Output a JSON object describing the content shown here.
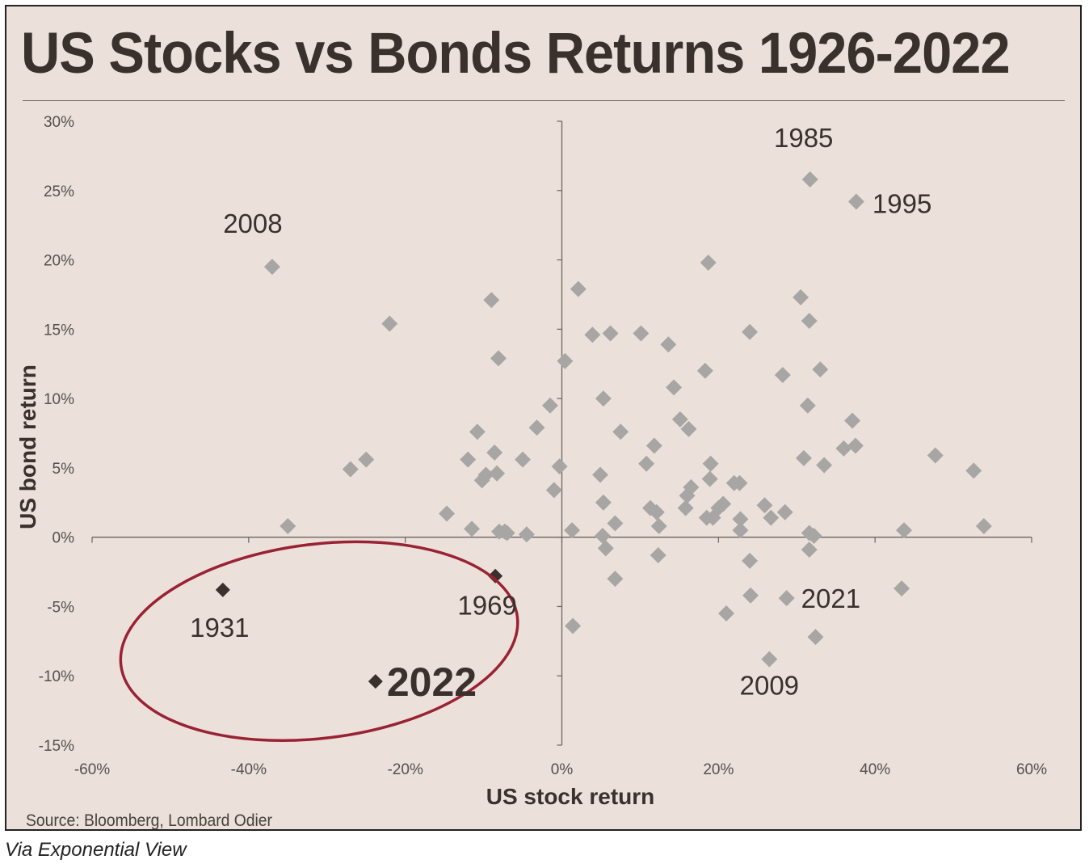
{
  "title": "US Stocks vs Bonds Returns 1926-2022",
  "source": "Source: Bloomberg, Lombard Odier",
  "caption": "Via Exponential View",
  "colors": {
    "background": "#ebe1da",
    "point": "#a8a6a5",
    "highlight": "#3a302c",
    "ellipse": "#9a2234"
  },
  "chart_data": {
    "type": "scatter",
    "xlabel": "US stock return",
    "ylabel": "US bond return",
    "xlim": [
      -60,
      60
    ],
    "ylim": [
      -15,
      30
    ],
    "x_ticks": [
      "-60%",
      "-40%",
      "-20%",
      "0%",
      "20%",
      "40%",
      "60%"
    ],
    "y_ticks": [
      "30%",
      "25%",
      "20%",
      "15%",
      "10%",
      "5%",
      "0%",
      "-5%",
      "-10%",
      "-15%"
    ],
    "grid": false,
    "series": [
      {
        "points": [
          [
            -37.0,
            19.5
          ],
          [
            -35.0,
            0.8
          ],
          [
            -27.0,
            4.9
          ],
          [
            -25.0,
            5.6
          ],
          [
            -22.0,
            15.4
          ],
          [
            -14.7,
            1.7
          ],
          [
            -12.0,
            5.6
          ],
          [
            -11.5,
            0.6
          ],
          [
            -10.8,
            7.6
          ],
          [
            -10.2,
            4.1
          ],
          [
            -9.7,
            4.5
          ],
          [
            -9.0,
            17.1
          ],
          [
            -8.6,
            6.1
          ],
          [
            -8.3,
            4.6
          ],
          [
            -8.1,
            12.9
          ],
          [
            -8.0,
            0.4
          ],
          [
            -7.3,
            0.4
          ],
          [
            -7.0,
            0.3
          ],
          [
            -5.0,
            5.6
          ],
          [
            -4.5,
            0.2
          ],
          [
            -3.2,
            7.9
          ],
          [
            -1.5,
            9.5
          ],
          [
            -1.0,
            3.4
          ],
          [
            -0.3,
            5.1
          ],
          [
            0.4,
            12.7
          ],
          [
            1.3,
            0.5
          ],
          [
            1.4,
            -6.4
          ],
          [
            2.1,
            17.9
          ],
          [
            3.9,
            14.6
          ],
          [
            4.9,
            4.5
          ],
          [
            5.3,
            10.0
          ],
          [
            5.3,
            2.5
          ],
          [
            5.2,
            0.1
          ],
          [
            5.6,
            -0.8
          ],
          [
            6.2,
            14.7
          ],
          [
            6.8,
            1.0
          ],
          [
            6.8,
            -3.0
          ],
          [
            7.5,
            7.6
          ],
          [
            10.1,
            14.7
          ],
          [
            10.8,
            5.3
          ],
          [
            11.3,
            2.1
          ],
          [
            11.8,
            6.6
          ],
          [
            12.1,
            1.8
          ],
          [
            12.3,
            -1.3
          ],
          [
            12.4,
            0.8
          ],
          [
            13.6,
            13.9
          ],
          [
            14.3,
            10.8
          ],
          [
            15.1,
            8.5
          ],
          [
            15.8,
            2.1
          ],
          [
            16.0,
            3.0
          ],
          [
            16.2,
            7.8
          ],
          [
            16.5,
            3.6
          ],
          [
            18.3,
            12.0
          ],
          [
            18.5,
            1.4
          ],
          [
            18.7,
            19.8
          ],
          [
            18.9,
            4.2
          ],
          [
            19.0,
            5.3
          ],
          [
            19.3,
            1.4
          ],
          [
            20.0,
            2.1
          ],
          [
            20.6,
            2.4
          ],
          [
            21.0,
            -5.5
          ],
          [
            22.0,
            3.9
          ],
          [
            22.7,
            3.9
          ],
          [
            22.8,
            1.3
          ],
          [
            22.8,
            0.5
          ],
          [
            24.0,
            14.8
          ],
          [
            24.0,
            -1.7
          ],
          [
            24.1,
            -4.2
          ],
          [
            25.9,
            2.3
          ],
          [
            26.5,
            -8.8
          ],
          [
            26.7,
            1.4
          ],
          [
            28.2,
            11.7
          ],
          [
            28.5,
            1.8
          ],
          [
            28.7,
            -4.4
          ],
          [
            30.5,
            17.3
          ],
          [
            30.9,
            5.7
          ],
          [
            31.4,
            9.5
          ],
          [
            31.6,
            15.6
          ],
          [
            31.6,
            0.3
          ],
          [
            31.6,
            -0.9
          ],
          [
            32.2,
            0.1
          ],
          [
            32.4,
            -7.2
          ],
          [
            33.0,
            12.1
          ],
          [
            33.5,
            5.2
          ],
          [
            36.0,
            6.4
          ],
          [
            37.1,
            8.4
          ],
          [
            37.5,
            6.6
          ],
          [
            43.4,
            -3.7
          ],
          [
            43.7,
            0.5
          ],
          [
            47.7,
            5.9
          ],
          [
            52.6,
            4.8
          ],
          [
            53.9,
            0.8
          ]
        ]
      },
      {
        "points": [
          [
            31.7,
            25.8
          ],
          [
            37.6,
            24.2
          ]
        ]
      }
    ],
    "highlights": [
      [
        -43.3,
        -3.8
      ],
      [
        -8.5,
        -2.8
      ],
      [
        -23.8,
        -10.4
      ]
    ],
    "annotations": [
      {
        "text": "1985",
        "x": 31.7,
        "y": 25.8
      },
      {
        "text": "1995",
        "x": 37.6,
        "y": 24.2
      },
      {
        "text": "2008",
        "x": -37.0,
        "y": 19.5
      },
      {
        "text": "2021",
        "x": 28.7,
        "y": -4.4
      },
      {
        "text": "2009",
        "x": 26.5,
        "y": -8.8
      },
      {
        "text": "1931",
        "x": -43.3,
        "y": -3.8
      },
      {
        "text": "1969",
        "x": -8.5,
        "y": -2.8
      },
      {
        "text": "2022",
        "x": -23.8,
        "y": -10.4
      }
    ],
    "ellipse": {
      "cx": -31,
      "cy": -7.5,
      "rx": 25.5,
      "ry": 7.0,
      "rotate_deg": -7
    }
  }
}
